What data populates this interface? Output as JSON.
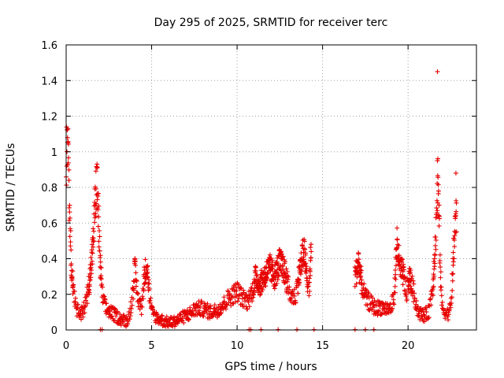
{
  "chart_data": {
    "type": "scatter",
    "title": "Day 295 of 2025, SRMTID for receiver terc",
    "xlabel": "GPS time / hours",
    "ylabel": "SRMTID / TECUs",
    "xlim": [
      0,
      24
    ],
    "ylim": [
      0,
      1.6
    ],
    "xticks": [
      0,
      5,
      10,
      15,
      20
    ],
    "xtick_labels": [
      "0",
      "5",
      "10",
      "15",
      "20"
    ],
    "yticks": [
      0,
      0.2,
      0.4,
      0.6,
      0.8,
      1.0,
      1.2,
      1.4,
      1.6
    ],
    "ytick_labels": [
      "0",
      "0.2",
      "0.4",
      "0.6",
      "0.8",
      "1",
      "1.2",
      "1.4",
      "1.6"
    ],
    "grid": true,
    "marker": "+",
    "series_color": "#e60000",
    "series": [
      {
        "name": "SRMTID",
        "profile": [
          [
            0.0,
            0.95
          ],
          [
            0.1,
            1.12
          ],
          [
            0.2,
            0.6
          ],
          [
            0.3,
            0.38
          ],
          [
            0.45,
            0.2
          ],
          [
            0.6,
            0.12
          ],
          [
            0.8,
            0.09
          ],
          [
            1.0,
            0.1
          ],
          [
            1.2,
            0.18
          ],
          [
            1.4,
            0.3
          ],
          [
            1.55,
            0.45
          ],
          [
            1.7,
            0.72
          ],
          [
            1.8,
            0.85
          ],
          [
            1.9,
            0.6
          ],
          [
            2.0,
            0.35
          ],
          [
            2.1,
            0.2
          ],
          [
            2.3,
            0.12
          ],
          [
            2.6,
            0.1
          ],
          [
            2.9,
            0.08
          ],
          [
            3.2,
            0.06
          ],
          [
            3.5,
            0.05
          ],
          [
            3.7,
            0.08
          ],
          [
            3.9,
            0.2
          ],
          [
            4.0,
            0.35
          ],
          [
            4.2,
            0.18
          ],
          [
            4.4,
            0.12
          ],
          [
            4.55,
            0.28
          ],
          [
            4.7,
            0.38
          ],
          [
            4.85,
            0.22
          ],
          [
            5.0,
            0.1
          ],
          [
            5.3,
            0.07
          ],
          [
            5.7,
            0.05
          ],
          [
            6.0,
            0.04
          ],
          [
            6.4,
            0.05
          ],
          [
            6.8,
            0.07
          ],
          [
            7.2,
            0.09
          ],
          [
            7.6,
            0.12
          ],
          [
            8.0,
            0.12
          ],
          [
            8.4,
            0.1
          ],
          [
            8.8,
            0.11
          ],
          [
            9.2,
            0.14
          ],
          [
            9.5,
            0.18
          ],
          [
            9.8,
            0.2
          ],
          [
            10.0,
            0.22
          ],
          [
            10.3,
            0.18
          ],
          [
            10.6,
            0.16
          ],
          [
            10.9,
            0.22
          ],
          [
            11.1,
            0.3
          ],
          [
            11.3,
            0.25
          ],
          [
            11.6,
            0.3
          ],
          [
            11.9,
            0.35
          ],
          [
            12.2,
            0.3
          ],
          [
            12.5,
            0.38
          ],
          [
            12.8,
            0.32
          ],
          [
            13.1,
            0.2
          ],
          [
            13.4,
            0.18
          ],
          [
            13.7,
            0.35
          ],
          [
            13.9,
            0.45
          ],
          [
            14.1,
            0.28
          ],
          [
            14.2,
            0.2
          ],
          [
            14.35,
            0.5
          ]
        ],
        "gap": [
          14.5,
          16.8
        ],
        "profile_2": [
          [
            16.9,
            0.3
          ],
          [
            17.1,
            0.38
          ],
          [
            17.3,
            0.25
          ],
          [
            17.5,
            0.18
          ],
          [
            17.8,
            0.15
          ],
          [
            18.1,
            0.12
          ],
          [
            18.4,
            0.13
          ],
          [
            18.7,
            0.12
          ],
          [
            19.0,
            0.12
          ],
          [
            19.2,
            0.2
          ],
          [
            19.35,
            0.5
          ],
          [
            19.5,
            0.35
          ],
          [
            19.7,
            0.32
          ],
          [
            19.9,
            0.2
          ],
          [
            20.1,
            0.3
          ],
          [
            20.3,
            0.22
          ],
          [
            20.6,
            0.1
          ],
          [
            20.9,
            0.08
          ],
          [
            21.2,
            0.1
          ],
          [
            21.45,
            0.25
          ],
          [
            21.6,
            0.5
          ],
          [
            21.75,
            0.85
          ],
          [
            21.9,
            0.3
          ],
          [
            22.0,
            0.12
          ],
          [
            22.3,
            0.09
          ],
          [
            22.5,
            0.12
          ],
          [
            22.6,
            0.3
          ],
          [
            22.75,
            0.6
          ],
          [
            22.85,
            0.65
          ]
        ],
        "outliers": [
          [
            21.72,
            1.45
          ],
          [
            21.72,
            0.95
          ],
          [
            2.05,
            0.35
          ],
          [
            22.8,
            0.88
          ]
        ],
        "zero_markers": [
          2.0,
          2.1,
          10.7,
          10.8,
          11.4,
          12.4,
          13.5,
          14.5,
          16.9,
          17.5,
          18.0
        ]
      }
    ]
  }
}
